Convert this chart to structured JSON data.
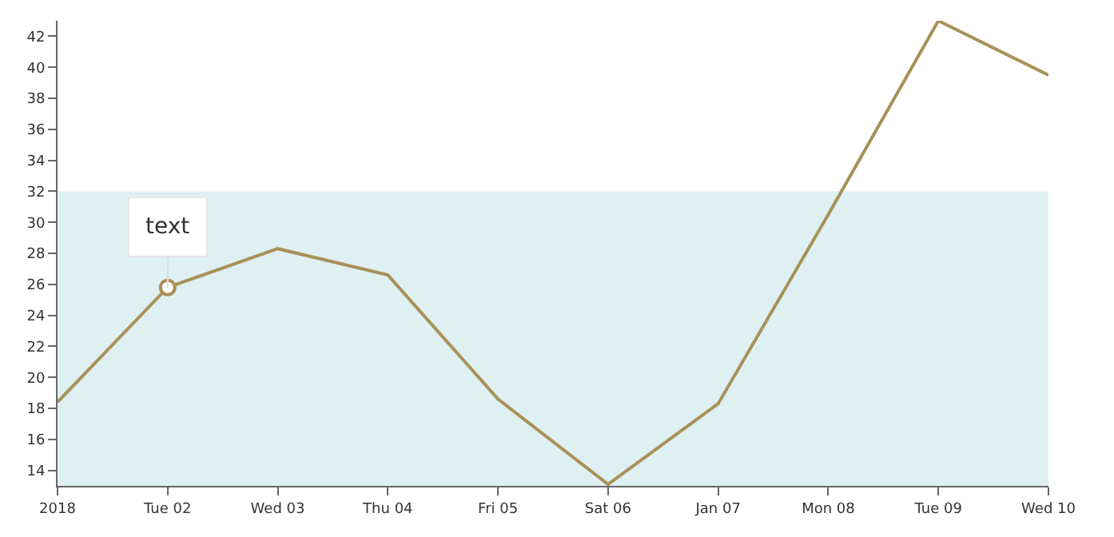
{
  "chart_data": {
    "type": "line",
    "x": [
      "2018-01-01",
      "2018-01-02",
      "2018-01-03",
      "2018-01-04",
      "2018-01-05",
      "2018-01-06",
      "2018-01-07",
      "2018-01-08",
      "2018-01-09",
      "2018-01-10"
    ],
    "series": [
      {
        "color": "#a89158",
        "values": [
          18.4,
          25.8,
          28.3,
          26.6,
          18.6,
          13.1,
          18.3,
          30.5,
          43,
          39.5
        ]
      }
    ],
    "xlim": [
      "2018-01-01",
      "2018-01-10"
    ],
    "xticks": [
      {
        "value": "2018-01-01",
        "label": "2018"
      },
      {
        "value": "2018-01-02",
        "label": "Tue 02"
      },
      {
        "value": "2018-01-03",
        "label": "Wed 03"
      },
      {
        "value": "2018-01-04",
        "label": "Thu 04"
      },
      {
        "value": "2018-01-05",
        "label": "Fri 05"
      },
      {
        "value": "2018-01-06",
        "label": "Sat 06"
      },
      {
        "value": "2018-01-07",
        "label": "Jan 07"
      },
      {
        "value": "2018-01-08",
        "label": "Mon 08"
      },
      {
        "value": "2018-01-09",
        "label": "Tue 09"
      },
      {
        "value": "2018-01-10",
        "label": "Wed 10"
      }
    ],
    "ylim": [
      13,
      43
    ],
    "yticks": [
      14,
      16,
      18,
      20,
      22,
      24,
      26,
      28,
      30,
      32,
      34,
      36,
      38,
      40,
      42
    ],
    "bands": [
      {
        "axis": "y",
        "from": 13,
        "to": 32,
        "color": "#dff0f2"
      }
    ],
    "annotations": [
      {
        "text": "text",
        "x": "2018-01-02",
        "y": 25.8
      }
    ],
    "grid": false,
    "marker": "none",
    "line_style": "solid"
  }
}
